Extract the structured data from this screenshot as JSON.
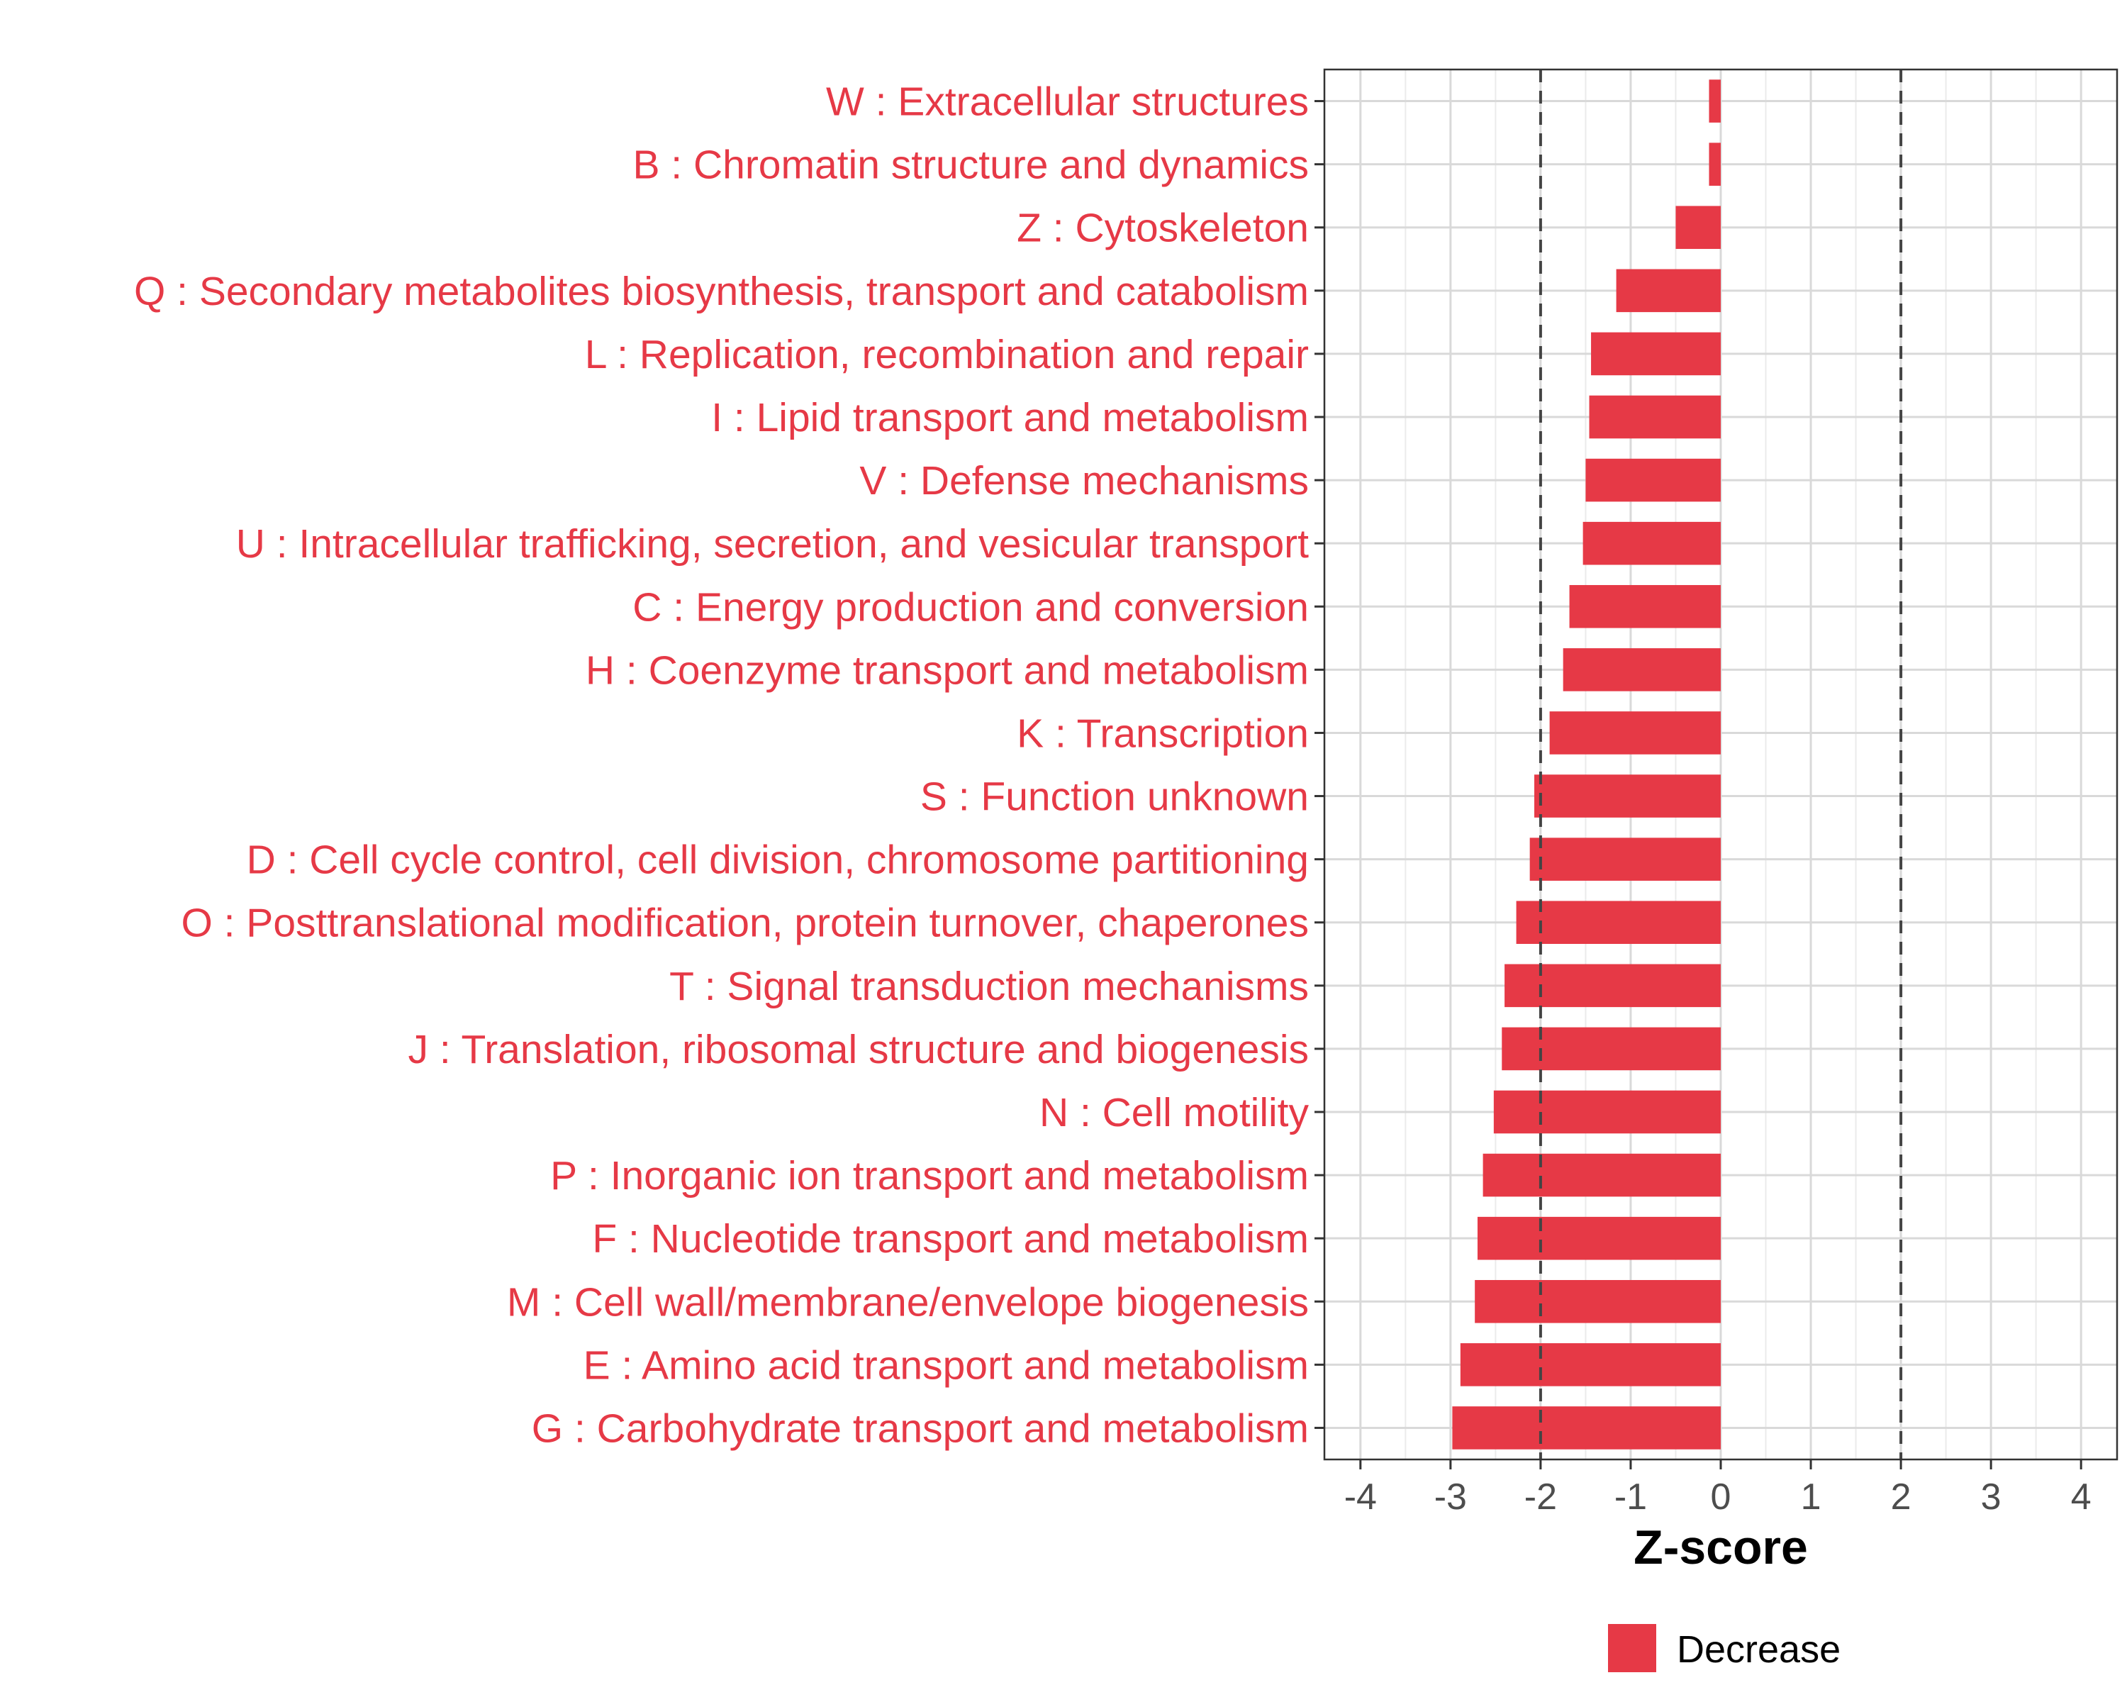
{
  "chart_data": {
    "type": "bar",
    "orientation": "horizontal",
    "title": "",
    "xlabel": "Z-score",
    "ylabel": "",
    "xlim": [
      -4.4,
      4.4
    ],
    "x_ticks": [
      -4,
      -3,
      -2,
      -1,
      0,
      1,
      2,
      3,
      4
    ],
    "x_tick_labels": [
      "-4",
      "-3",
      "-2",
      "-1",
      "0",
      "1",
      "2",
      "3",
      "4"
    ],
    "reference_lines": [
      -2,
      2
    ],
    "grid": true,
    "legend_position": "bottom",
    "bar_color": "#E63946",
    "label_color": "#E63946",
    "categories": [
      "W : Extracellular structures",
      "B : Chromatin structure and dynamics",
      "Z : Cytoskeleton",
      "Q : Secondary metabolites biosynthesis, transport and catabolism",
      "L : Replication, recombination and repair",
      "I : Lipid transport and metabolism",
      "V : Defense mechanisms",
      "U : Intracellular trafficking, secretion, and vesicular transport",
      "C : Energy production and conversion",
      "H : Coenzyme transport and metabolism",
      "K : Transcription",
      "S : Function unknown",
      "D : Cell cycle control, cell division, chromosome partitioning",
      "O : Posttranslational modification, protein turnover, chaperones",
      "T : Signal transduction mechanisms",
      "J : Translation, ribosomal structure and biogenesis",
      "N : Cell motility",
      "P : Inorganic ion transport and metabolism",
      "F : Nucleotide transport and metabolism",
      "M : Cell wall/membrane/envelope biogenesis",
      "E : Amino acid transport and metabolism",
      "G : Carbohydrate transport and metabolism"
    ],
    "series": [
      {
        "name": "Decrease",
        "values": [
          -0.13,
          -0.13,
          -0.5,
          -1.16,
          -1.44,
          -1.46,
          -1.5,
          -1.53,
          -1.68,
          -1.75,
          -1.9,
          -2.07,
          -2.12,
          -2.27,
          -2.4,
          -2.43,
          -2.52,
          -2.64,
          -2.7,
          -2.73,
          -2.89,
          -2.98
        ]
      }
    ],
    "legend": [
      {
        "label": "Decrease",
        "color": "#E63946"
      }
    ]
  }
}
